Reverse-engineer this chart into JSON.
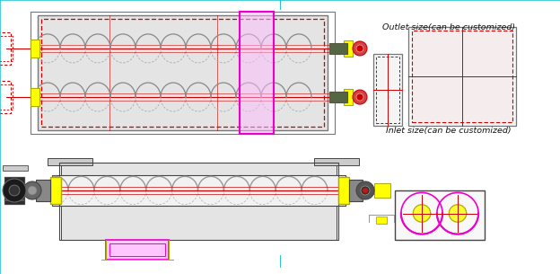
{
  "bg_color": "#f2f4f7",
  "inlet_label": "Inlet size(can be customized)",
  "outlet_label": "Outlet size(can be customized)",
  "colors": {
    "black": "#111111",
    "dark_gray": "#444444",
    "mid_gray": "#777777",
    "light_gray": "#bbbbbb",
    "body_gray": "#d8d8d8",
    "magenta": "#ee00cc",
    "pink_fill": "#ffbbff",
    "yellow_dark": "#aaaa00",
    "yellow_fill": "#ffff00",
    "red": "#cc0000",
    "pink_red": "#dd4444",
    "white": "#ffffff",
    "steel": "#aaaaaa",
    "body_fill": "#e4e4e4",
    "cyan_border": "#00bbcc"
  }
}
